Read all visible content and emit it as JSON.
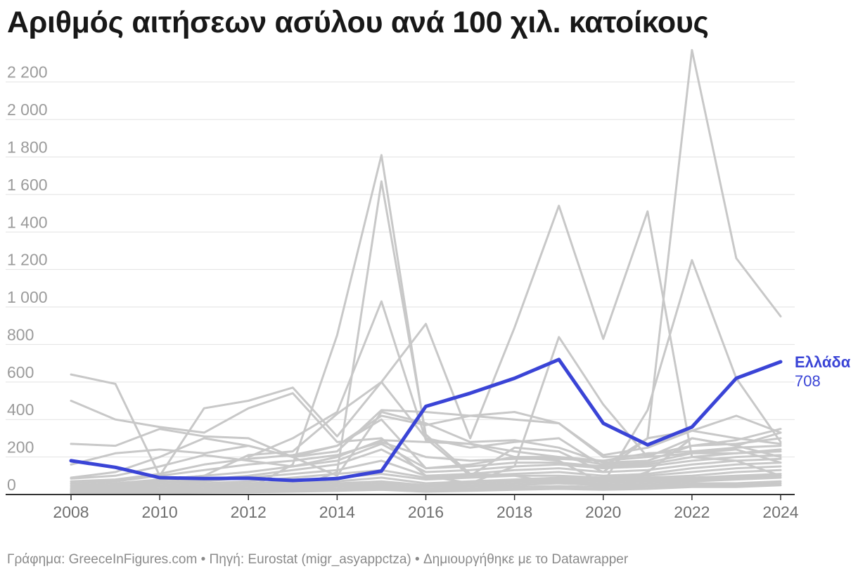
{
  "title": "Αριθμός αιτήσεων ασύλου ανά 100 χιλ. κατοίκους",
  "footer": {
    "text": "Γράφημα: GreeceInFigures.com • Πηγή: Eurostat (migr_asyappctza) • Δημιουργήθηκε με το Datawrapper"
  },
  "colors": {
    "highlight": "#3a44d6",
    "background_series": "#c8c8c8",
    "grid": "#e2e2e2",
    "axis": "#333333"
  },
  "chart_data": {
    "type": "line",
    "x": [
      2008,
      2009,
      2010,
      2011,
      2012,
      2013,
      2014,
      2015,
      2016,
      2017,
      2018,
      2019,
      2020,
      2021,
      2022,
      2023,
      2024
    ],
    "xticks": [
      2008,
      2010,
      2012,
      2014,
      2016,
      2018,
      2020,
      2022,
      2024
    ],
    "xtick_labels": [
      "2008",
      "2010",
      "2012",
      "2014",
      "2016",
      "2018",
      "2020",
      "2022",
      "2024"
    ],
    "ylim": [
      0,
      2300
    ],
    "yticks": [
      0,
      200,
      400,
      600,
      800,
      1000,
      1200,
      1400,
      1600,
      1800,
      2000,
      2200
    ],
    "ytick_labels": [
      "0",
      "200",
      "400",
      "600",
      "800",
      "1 000",
      "1 200",
      "1 400",
      "1 600",
      "1 800",
      "2 000",
      "2 200"
    ],
    "grid": true,
    "highlight": {
      "name": "Ελλάδα",
      "last_value_label": "708",
      "values": [
        180,
        145,
        90,
        85,
        87,
        75,
        85,
        125,
        470,
        540,
        620,
        720,
        380,
        265,
        360,
        620,
        708
      ]
    },
    "series": [
      {
        "values": [
          null,
          null,
          null,
          null,
          30,
          160,
          850,
          1810,
          300,
          100,
          250,
          230,
          120,
          300,
          2370,
          1260,
          950
        ]
      },
      {
        "values": [
          null,
          null,
          null,
          null,
          20,
          30,
          120,
          1670,
          320,
          110,
          100,
          60,
          50,
          120,
          300,
          260,
          330
        ]
      },
      {
        "values": [
          null,
          null,
          null,
          null,
          200,
          300,
          440,
          1030,
          290,
          270,
          200,
          180,
          60,
          450,
          1250,
          620,
          280
        ]
      },
      {
        "values": [
          30,
          50,
          80,
          100,
          210,
          230,
          430,
          600,
          910,
          300,
          890,
          1540,
          830,
          1510,
          200,
          180,
          100
        ]
      },
      {
        "values": [
          640,
          590,
          100,
          460,
          500,
          570,
          310,
          600,
          300,
          250,
          280,
          300,
          150,
          300,
          340,
          420,
          330
        ]
      },
      {
        "values": [
          500,
          400,
          360,
          330,
          460,
          540,
          280,
          300,
          100,
          60,
          150,
          840,
          480,
          200,
          300,
          260,
          200
        ]
      },
      {
        "values": [
          270,
          260,
          350,
          310,
          300,
          200,
          260,
          420,
          370,
          420,
          440,
          380,
          210,
          250,
          340,
          300,
          270
        ]
      },
      {
        "values": [
          160,
          220,
          240,
          220,
          260,
          200,
          100,
          440,
          380,
          280,
          290,
          250,
          170,
          180,
          260,
          290,
          350
        ]
      },
      {
        "values": [
          90,
          120,
          200,
          300,
          260,
          200,
          230,
          450,
          440,
          420,
          400,
          380,
          200,
          210,
          260,
          270,
          300
        ]
      },
      {
        "values": [
          85,
          100,
          150,
          210,
          180,
          150,
          200,
          290,
          280,
          270,
          230,
          200,
          180,
          220,
          230,
          250,
          260
        ]
      },
      {
        "values": [
          70,
          80,
          110,
          160,
          190,
          210,
          260,
          400,
          140,
          160,
          200,
          200,
          160,
          170,
          220,
          220,
          230
        ]
      },
      {
        "values": [
          60,
          70,
          100,
          130,
          160,
          180,
          210,
          280,
          200,
          180,
          190,
          190,
          180,
          200,
          220,
          240,
          170
        ]
      },
      {
        "values": [
          50,
          60,
          80,
          100,
          120,
          150,
          180,
          270,
          140,
          150,
          170,
          170,
          150,
          160,
          200,
          220,
          240
        ]
      },
      {
        "values": [
          40,
          50,
          70,
          80,
          100,
          130,
          160,
          240,
          120,
          130,
          150,
          160,
          140,
          150,
          180,
          200,
          210
        ]
      },
      {
        "values": [
          30,
          40,
          60,
          70,
          90,
          110,
          130,
          180,
          100,
          110,
          130,
          140,
          120,
          130,
          160,
          180,
          190
        ]
      },
      {
        "values": [
          25,
          35,
          50,
          60,
          70,
          90,
          110,
          130,
          90,
          100,
          110,
          120,
          100,
          110,
          140,
          160,
          170
        ]
      },
      {
        "values": [
          20,
          30,
          40,
          50,
          60,
          70,
          90,
          110,
          80,
          90,
          100,
          100,
          90,
          100,
          120,
          140,
          150
        ]
      },
      {
        "values": [
          15,
          25,
          30,
          40,
          50,
          60,
          70,
          90,
          60,
          70,
          80,
          90,
          80,
          90,
          100,
          120,
          130
        ]
      },
      {
        "values": [
          12,
          20,
          25,
          30,
          40,
          50,
          60,
          70,
          50,
          60,
          70,
          80,
          70,
          80,
          90,
          100,
          110
        ]
      },
      {
        "values": [
          10,
          15,
          20,
          25,
          30,
          40,
          50,
          60,
          40,
          50,
          60,
          70,
          60,
          70,
          80,
          90,
          100
        ]
      },
      {
        "values": [
          8,
          12,
          15,
          20,
          25,
          30,
          40,
          50,
          30,
          40,
          50,
          60,
          50,
          60,
          70,
          80,
          90
        ]
      },
      {
        "values": [
          5,
          10,
          12,
          15,
          20,
          25,
          30,
          40,
          25,
          30,
          40,
          45,
          40,
          50,
          60,
          60,
          70
        ]
      },
      {
        "values": [
          5,
          8,
          10,
          12,
          15,
          20,
          25,
          30,
          20,
          25,
          30,
          35,
          30,
          40,
          50,
          50,
          60
        ]
      },
      {
        "values": [
          3,
          5,
          8,
          10,
          12,
          15,
          20,
          25,
          15,
          20,
          25,
          30,
          25,
          30,
          40,
          40,
          50
        ]
      }
    ]
  }
}
